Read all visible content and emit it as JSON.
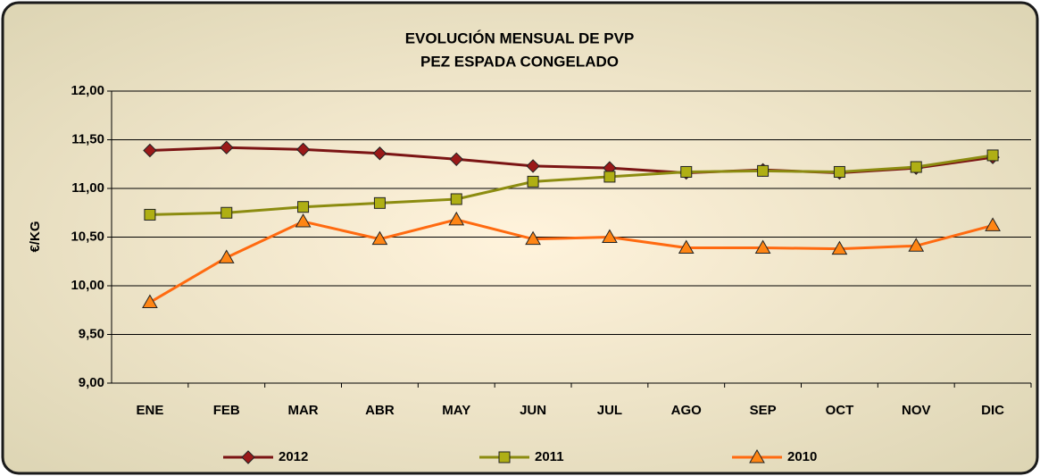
{
  "chart_data": {
    "type": "line",
    "title": "EVOLUCIÓN MENSUAL DE PVP",
    "subtitle": "PEZ ESPADA CONGELADO",
    "y_label": "€/KG",
    "categories": [
      "ENE",
      "FEB",
      "MAR",
      "ABR",
      "MAY",
      "JUN",
      "JUL",
      "AGO",
      "SEP",
      "OCT",
      "NOV",
      "DIC"
    ],
    "series": [
      {
        "name": "2012",
        "color": "#7b1414",
        "marker": "diamond",
        "values": [
          11.39,
          11.42,
          11.4,
          11.36,
          11.3,
          11.23,
          11.21,
          11.16,
          11.19,
          11.16,
          11.21,
          11.32
        ]
      },
      {
        "name": "2011",
        "color": "#8c8c10",
        "marker": "square",
        "values": [
          10.73,
          10.75,
          10.81,
          10.85,
          10.89,
          11.07,
          11.12,
          11.17,
          11.18,
          11.17,
          11.22,
          11.34
        ]
      },
      {
        "name": "2010",
        "color": "#ff6a10",
        "marker": "triangle",
        "values": [
          9.83,
          10.29,
          10.66,
          10.48,
          10.68,
          10.48,
          10.5,
          10.39,
          10.39,
          10.38,
          10.41,
          10.62
        ]
      }
    ],
    "ylim": [
      9,
      12
    ],
    "yticks": [
      {
        "value": 9,
        "label": "9,00"
      },
      {
        "value": 9.5,
        "label": "9,50"
      },
      {
        "value": 10,
        "label": "10,00"
      },
      {
        "value": 10.5,
        "label": "10,50"
      },
      {
        "value": 11,
        "label": "11,00"
      },
      {
        "value": 11.5,
        "label": "11,50"
      },
      {
        "value": 12,
        "label": "12,00"
      }
    ],
    "grid": true,
    "legend": "bottom"
  }
}
